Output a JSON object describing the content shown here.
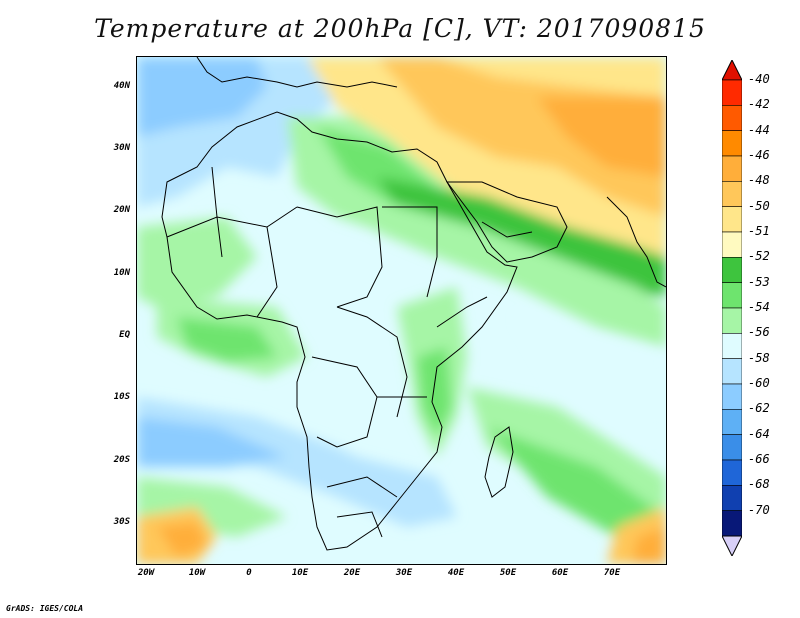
{
  "title": "Temperature at 200hPa [C], VT: 2017090815",
  "credit": "GrADS: IGES/COLA",
  "map": {
    "region": "Africa and Middle East",
    "lon_range": [
      -23,
      80
    ],
    "lat_range": [
      -37,
      45
    ],
    "lat_labels": [
      "40N",
      "30N",
      "20N",
      "10N",
      "EQ",
      "10S",
      "20S",
      "30S"
    ],
    "lon_labels": [
      "20W",
      "10W",
      "0",
      "10E",
      "20E",
      "30E",
      "40E",
      "50E",
      "60E",
      "70E"
    ]
  },
  "colorbar": {
    "labels": [
      "-40",
      "-42",
      "-44",
      "-46",
      "-48",
      "-50",
      "-51",
      "-52",
      "-53",
      "-54",
      "-56",
      "-58",
      "-60",
      "-62",
      "-64",
      "-66",
      "-68",
      "-70"
    ],
    "colors": [
      "#ff2a00",
      "#ff5a00",
      "#ff8a00",
      "#ffae3a",
      "#ffc75a",
      "#ffe68a",
      "#fffac0",
      "#3ec43e",
      "#6ee46e",
      "#a6f5a6",
      "#dffcff",
      "#b6e4ff",
      "#8cccff",
      "#5eb0f5",
      "#3a8ee8",
      "#1f66d8",
      "#1040b0",
      "#081878"
    ],
    "top_arrow_color": "#e01000",
    "bottom_arrow_color": "#d8d0f8"
  }
}
